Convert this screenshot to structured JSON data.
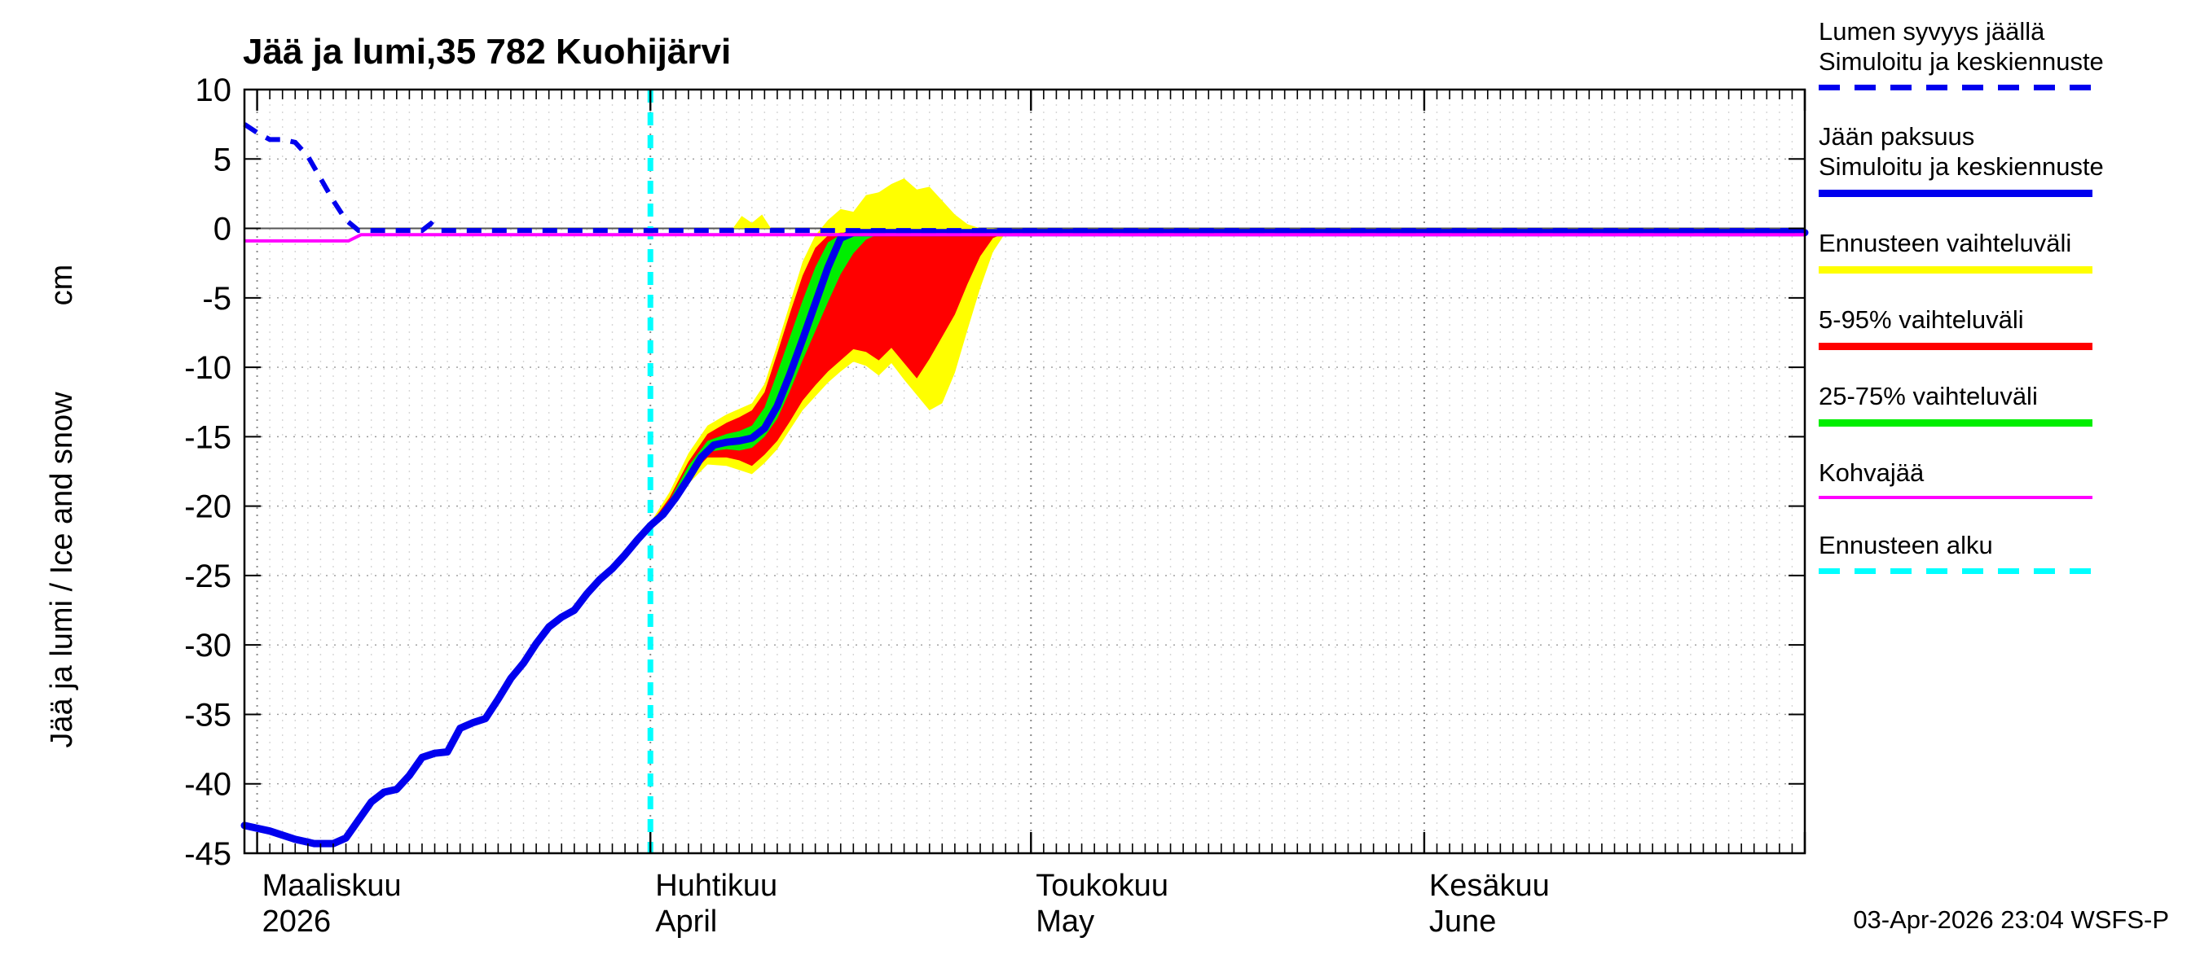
{
  "timestamp": "03-Apr-2026 23:04 WSFS-P",
  "legend": [
    {
      "lines": [
        "Lumen syvyys jäällä",
        "Simuloitu ja keskiennuste"
      ],
      "color": "#0000ee",
      "dashed": true,
      "thickness": 7
    },
    {
      "lines": [
        "Jään paksuus",
        "Simuloitu ja keskiennuste"
      ],
      "color": "#0000ee",
      "dashed": false,
      "thickness": 9
    },
    {
      "lines": [
        "Ennusteen vaihteluväli"
      ],
      "color": "#ffff00",
      "dashed": false,
      "thickness": 9
    },
    {
      "lines": [
        "5-95% vaihteluväli"
      ],
      "color": "#ff0000",
      "dashed": false,
      "thickness": 9
    },
    {
      "lines": [
        "25-75% vaihteluväli"
      ],
      "color": "#00ee00",
      "dashed": false,
      "thickness": 9
    },
    {
      "lines": [
        "Kohvajää"
      ],
      "color": "#ff00ff",
      "dashed": false,
      "thickness": 4
    },
    {
      "lines": [
        "Ennusteen alku"
      ],
      "color": "#00ffff",
      "dashed": true,
      "thickness": 7
    }
  ],
  "chart_data": {
    "type": "line",
    "title": "Jää ja lumi,35 782 Kuohijärvi",
    "ylabel": "Jää ja lumi / Ice and snow",
    "y_unit": "cm",
    "ylim": [
      -45,
      10
    ],
    "y_ticks": [
      10,
      5,
      0,
      -5,
      -10,
      -15,
      -20,
      -25,
      -30,
      -35,
      -40,
      -45
    ],
    "x_min_day": -1,
    "x_domain_days": 122,
    "month_days": [
      0,
      31,
      61,
      92,
      122
    ],
    "months": [
      {
        "label": "Maaliskuu",
        "sublabel": "2026",
        "day": 0
      },
      {
        "label": "Huhtikuu",
        "sublabel": "April",
        "day": 31
      },
      {
        "label": "Toukokuu",
        "sublabel": "May",
        "day": 61
      },
      {
        "label": "Kesäkuu",
        "sublabel": "June",
        "day": 92
      }
    ],
    "forecast_line": {
      "day": 31,
      "color": "#00ffff"
    },
    "series": {
      "ice_thickness": {
        "name": "Jään paksuus - Simuloitu ja keskiennuste",
        "color": "#0000ee",
        "x": [
          -1,
          1,
          3,
          4.5,
          6,
          7,
          8,
          9,
          10,
          11,
          12,
          13,
          14,
          15,
          16,
          17,
          18,
          19,
          20,
          21,
          22,
          23,
          24,
          25,
          26,
          27,
          28,
          29,
          30,
          31,
          32,
          33,
          34,
          35,
          36,
          37,
          38,
          39,
          40,
          41,
          42,
          43,
          44,
          45,
          46,
          47,
          122
        ],
        "y": [
          -43.0,
          -43.4,
          -44.0,
          -44.3,
          -44.3,
          -43.9,
          -42.6,
          -41.3,
          -40.6,
          -40.4,
          -39.4,
          -38.1,
          -37.8,
          -37.7,
          -36.0,
          -35.6,
          -35.3,
          -33.9,
          -32.4,
          -31.3,
          -29.9,
          -28.7,
          -28.0,
          -27.5,
          -26.3,
          -25.3,
          -24.5,
          -23.5,
          -22.4,
          -21.4,
          -20.6,
          -19.4,
          -18.0,
          -16.5,
          -15.6,
          -15.4,
          -15.3,
          -15.1,
          -14.4,
          -12.8,
          -10.5,
          -8.0,
          -5.4,
          -2.8,
          -0.7,
          -0.3,
          -0.3
        ]
      },
      "snow_depth": {
        "name": "Lumen syvyys jäällä - Simuloitu ja keskiennuste",
        "color": "#0000ee",
        "x": [
          -1,
          0,
          1,
          2,
          3,
          4,
          5,
          6,
          7,
          8,
          13,
          13.7,
          14.4,
          122
        ],
        "y": [
          7.5,
          6.9,
          6.4,
          6.4,
          6.2,
          5.2,
          3.6,
          2.0,
          0.6,
          -0.15,
          -0.15,
          0.35,
          -0.15,
          -0.15
        ]
      },
      "kohvajaa": {
        "name": "Kohvajää",
        "color": "#ff00ff",
        "x": [
          -1,
          7.2,
          8.2,
          122
        ],
        "y": [
          -0.9,
          -0.9,
          -0.45,
          -0.45
        ]
      },
      "range_total": {
        "name": "Ennusteen vaihteluväli",
        "color": "#ffff00",
        "x": [
          31,
          32.5,
          34,
          35.5,
          37,
          38,
          39,
          40,
          41,
          42,
          43,
          44,
          45,
          46,
          47,
          48,
          49,
          50,
          51,
          52,
          53,
          54,
          55,
          56,
          57,
          58,
          59
        ],
        "upper": [
          -21.2,
          -19.0,
          -16.2,
          -14.2,
          -13.4,
          -13.0,
          -12.6,
          -11.2,
          -8.4,
          -5.4,
          -2.4,
          -0.5,
          0.6,
          1.4,
          1.2,
          2.4,
          2.6,
          3.2,
          3.6,
          2.8,
          3.0,
          2.0,
          1.0,
          0.3,
          0.0,
          0.0,
          -0.1
        ],
        "lower": [
          -21.6,
          -20.2,
          -18.4,
          -17.0,
          -17.1,
          -17.4,
          -17.7,
          -16.9,
          -15.9,
          -14.5,
          -13.1,
          -12.1,
          -11.1,
          -10.3,
          -9.6,
          -9.9,
          -10.6,
          -9.7,
          -10.9,
          -12.0,
          -13.1,
          -12.6,
          -10.4,
          -7.3,
          -4.3,
          -1.7,
          -0.3
        ]
      },
      "range_total_blip": {
        "name": "Ennusteen vaihteluväli (lumi)",
        "color": "#ffff00",
        "x": [
          37.5,
          38.2,
          39,
          39.8,
          40.5
        ],
        "upper": [
          0,
          0.9,
          0.4,
          1.0,
          0
        ],
        "lower": [
          0,
          0,
          0,
          0,
          0
        ]
      },
      "range_5_95": {
        "name": "5-95% vaihteluväli",
        "color": "#ff0000",
        "x": [
          31,
          32.5,
          34,
          35.5,
          37,
          38,
          39,
          40,
          41,
          42,
          43,
          44,
          45,
          46,
          47,
          48,
          49,
          50,
          51,
          52,
          53,
          54,
          55,
          56,
          57,
          58,
          59
        ],
        "upper": [
          -21.3,
          -19.4,
          -16.8,
          -14.8,
          -14.0,
          -13.6,
          -13.1,
          -11.8,
          -9.0,
          -6.1,
          -3.4,
          -1.4,
          -0.5,
          -0.3,
          -0.3,
          -0.3,
          -0.3,
          -0.3,
          -0.3,
          -0.3,
          -0.3,
          -0.3,
          -0.3,
          -0.3,
          -0.3,
          -0.3,
          -0.3
        ],
        "lower": [
          -21.5,
          -19.9,
          -17.9,
          -16.5,
          -16.5,
          -16.7,
          -17.1,
          -16.3,
          -15.3,
          -13.9,
          -12.4,
          -11.3,
          -10.3,
          -9.5,
          -8.7,
          -8.9,
          -9.5,
          -8.6,
          -9.7,
          -10.8,
          -9.4,
          -7.8,
          -6.2,
          -4.0,
          -2.0,
          -0.7,
          -0.3
        ]
      },
      "range_25_75": {
        "name": "25-75% vaihteluväli",
        "color": "#00ee00",
        "x": [
          31,
          32.5,
          34,
          35.5,
          37,
          38,
          39,
          40,
          41,
          42,
          43,
          44,
          45,
          46,
          47,
          48,
          49,
          50
        ],
        "upper": [
          -21.35,
          -19.6,
          -17.1,
          -15.3,
          -14.8,
          -14.6,
          -14.2,
          -12.9,
          -10.4,
          -7.8,
          -5.2,
          -2.8,
          -1.0,
          -0.45,
          -0.35,
          -0.3,
          -0.3,
          -0.3
        ],
        "lower": [
          -21.45,
          -19.8,
          -17.6,
          -16.1,
          -15.9,
          -16.0,
          -15.8,
          -15.0,
          -13.7,
          -11.7,
          -9.5,
          -7.4,
          -5.3,
          -3.3,
          -1.8,
          -0.8,
          -0.4,
          -0.3
        ]
      }
    }
  }
}
